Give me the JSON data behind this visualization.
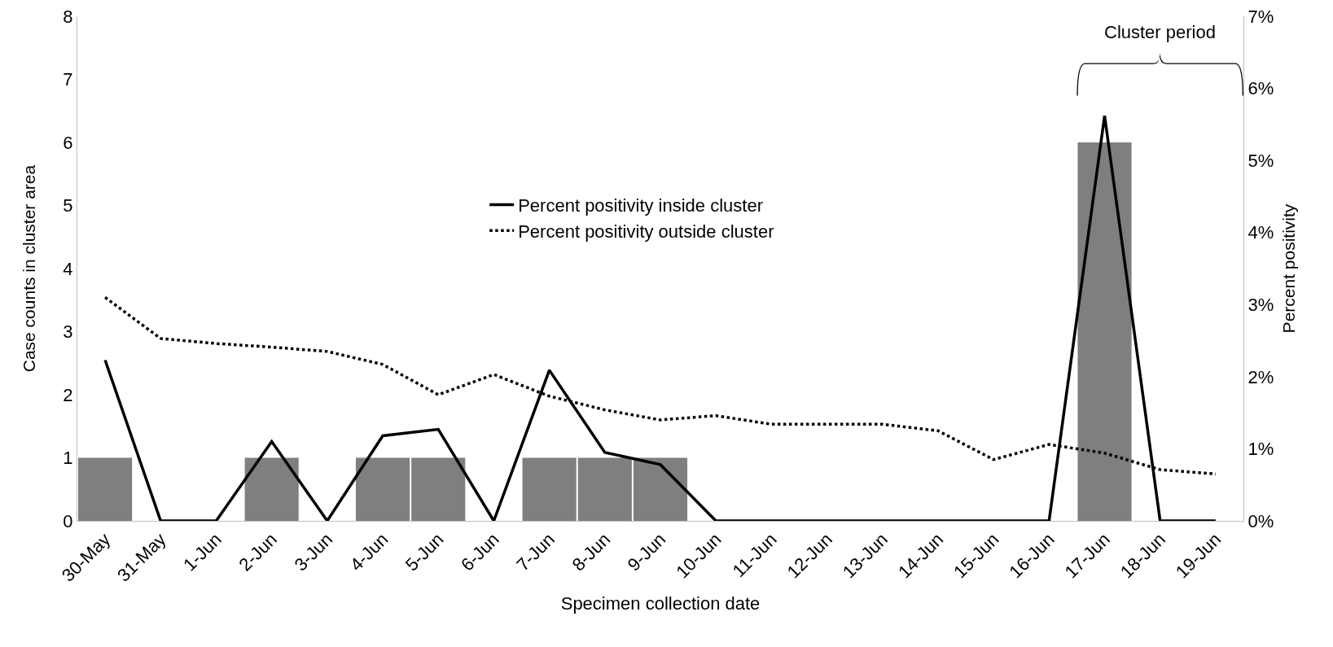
{
  "chart_data": {
    "type": "bar",
    "xlabel": "Specimen collection date",
    "ylabel": "Case counts in cluster area",
    "y2label": "Percent positivity",
    "categories": [
      "30-May",
      "31-May",
      "1-Jun",
      "2-Jun",
      "3-Jun",
      "4-Jun",
      "5-Jun",
      "6-Jun",
      "7-Jun",
      "8-Jun",
      "9-Jun",
      "10-Jun",
      "11-Jun",
      "12-Jun",
      "13-Jun",
      "14-Jun",
      "15-Jun",
      "16-Jun",
      "17-Jun",
      "18-Jun",
      "19-Jun"
    ],
    "series": [
      {
        "color": "#7f7f7f",
        "values": [
          1,
          0,
          0,
          1,
          0,
          1,
          1,
          0,
          1,
          1,
          1,
          0,
          0,
          0,
          0,
          0,
          0,
          0,
          6,
          0,
          0
        ]
      },
      {
        "type": "line",
        "name": "Percent positivity inside cluster",
        "color": "#000000",
        "axis": "y2",
        "line_style": "solid",
        "values": [
          2.23,
          0,
          0,
          1.1,
          0,
          1.18,
          1.27,
          0,
          2.09,
          0.95,
          0.78,
          0,
          0,
          0,
          0,
          0,
          0,
          0,
          5.62,
          0,
          0
        ]
      },
      {
        "type": "line",
        "name": "Percent positivity outside cluster",
        "color": "#000000",
        "axis": "y2",
        "line_style": "dotted",
        "values": [
          3.1,
          2.53,
          2.46,
          2.41,
          2.35,
          2.17,
          1.75,
          2.03,
          1.73,
          1.54,
          1.4,
          1.46,
          1.34,
          1.34,
          1.34,
          1.25,
          0.85,
          1.06,
          0.94,
          0.71,
          0.65
        ]
      }
    ],
    "ylim": [
      0,
      8
    ],
    "yticks": [
      0,
      1,
      2,
      3,
      4,
      5,
      6,
      7,
      8
    ],
    "y2lim": [
      0,
      7
    ],
    "y2ticks": [
      {
        "value": 0,
        "label": "0%"
      },
      {
        "value": 1,
        "label": "1%"
      },
      {
        "value": 2,
        "label": "2%"
      },
      {
        "value": 3,
        "label": "3%"
      },
      {
        "value": 4,
        "label": "4%"
      },
      {
        "value": 5,
        "label": "5%"
      },
      {
        "value": 6,
        "label": "6%"
      },
      {
        "value": 7,
        "label": "7%"
      }
    ],
    "annotations": [
      "Cluster period"
    ],
    "grid": false,
    "legend": "top",
    "marker": "none"
  }
}
